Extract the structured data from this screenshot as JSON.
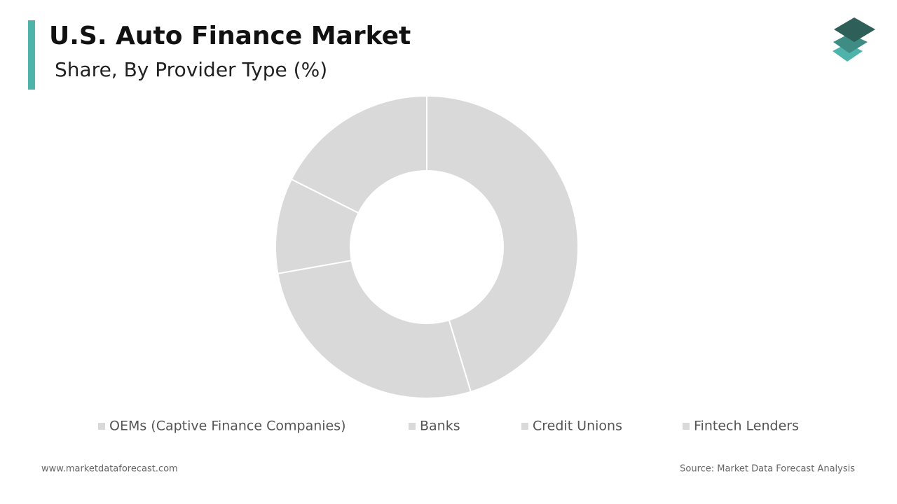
{
  "chart_data": {
    "type": "donut",
    "title": "U.S. Auto Finance Market",
    "subtitle": "Share, By Provider Type (%)",
    "categories": [
      "OEMs (Captive Finance Companies)",
      "Banks",
      "Credit Unions",
      "Fintech Lenders"
    ],
    "values": [
      45.3,
      26.9,
      10.2,
      17.6
    ],
    "colors": [
      "#d9d9d9",
      "#d9d9d9",
      "#d9d9d9",
      "#d9d9d9"
    ]
  },
  "footer": {
    "website": "www.marketdataforecast.com",
    "source": "Source: Market Data Forecast Analysis"
  }
}
